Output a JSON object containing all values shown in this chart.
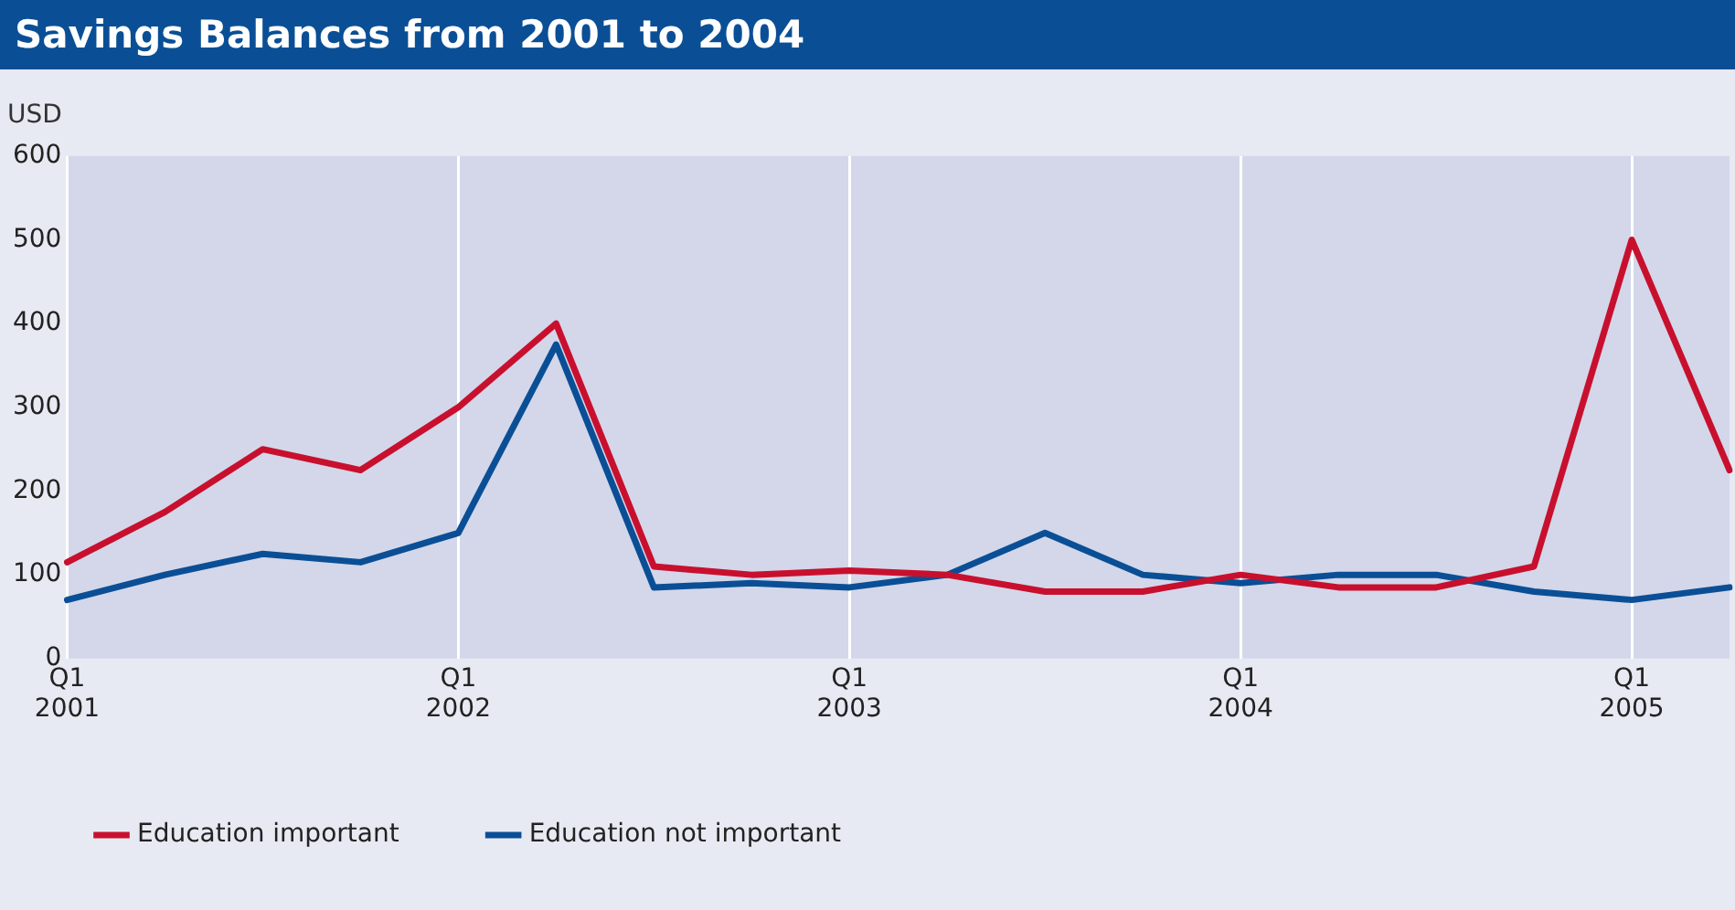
{
  "chart_data": {
    "type": "line",
    "title": "Savings Balances from 2001 to 2004",
    "ylabel": "USD",
    "categories": [
      "Q1 2001",
      null,
      null,
      null,
      "Q1 2002",
      null,
      null,
      null,
      "Q1 2003",
      null,
      null,
      null,
      "Q1 2004",
      null,
      null,
      null,
      "Q1 2005",
      null
    ],
    "series": [
      {
        "name": "Education important",
        "color": "#c8102e",
        "values": [
          115,
          175,
          250,
          225,
          300,
          400,
          110,
          100,
          105,
          100,
          80,
          80,
          100,
          85,
          85,
          110,
          500,
          225
        ]
      },
      {
        "name": "Education not important",
        "color": "#0a4f96",
        "values": [
          70,
          100,
          125,
          115,
          150,
          375,
          85,
          90,
          85,
          100,
          150,
          100,
          90,
          100,
          100,
          80,
          70,
          85
        ]
      }
    ],
    "ylim": [
      0,
      600
    ],
    "yticks": [
      0,
      100,
      200,
      300,
      400,
      500,
      600
    ],
    "grid": "x",
    "legend": "bottom left",
    "marker": "none",
    "line_style": "solid"
  }
}
